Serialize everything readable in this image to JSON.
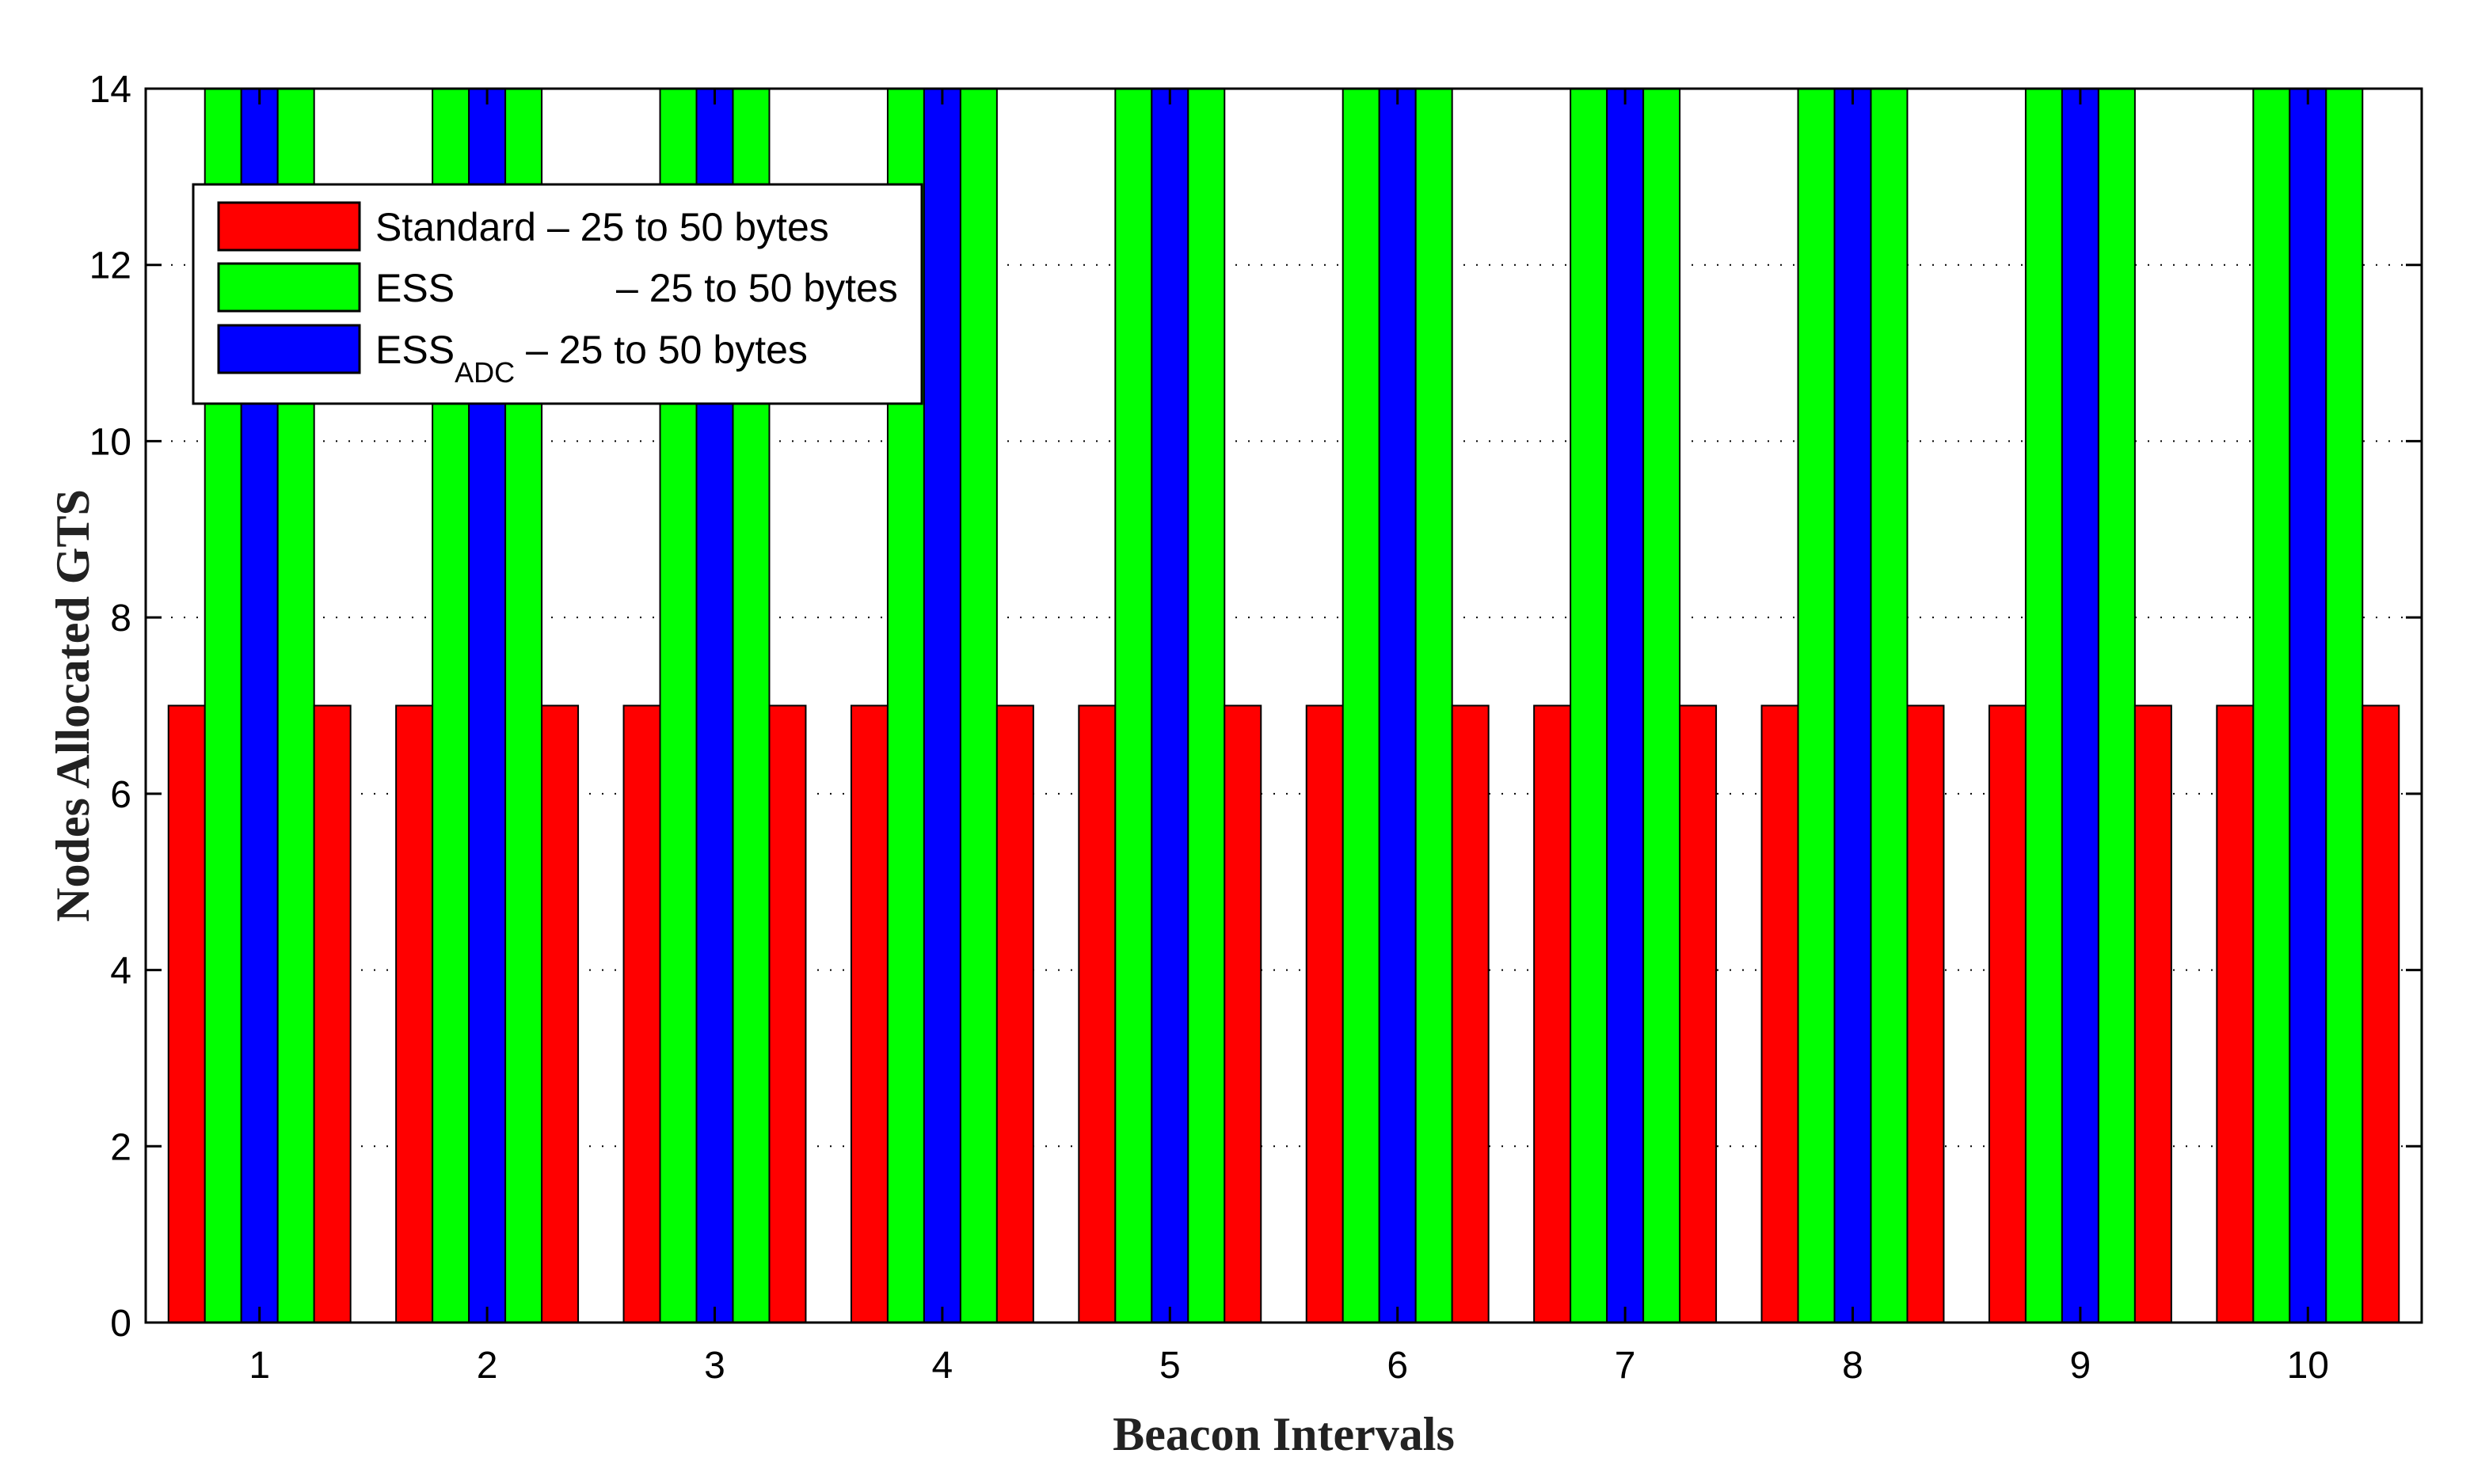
{
  "chart_data": {
    "type": "bar",
    "xlabel": "Beacon Intervals",
    "ylabel": "Nodes Allocated GTS",
    "ylim": [
      0,
      14
    ],
    "yticks": [
      0,
      2,
      4,
      6,
      8,
      10,
      12,
      14
    ],
    "categories": [
      "1",
      "2",
      "3",
      "4",
      "5",
      "6",
      "7",
      "8",
      "9",
      "10"
    ],
    "grid": "horizontal dotted",
    "legend_position": "top-left",
    "series": [
      {
        "name": "Standard – 25 to 50 bytes",
        "legend_main": "Standard",
        "legend_sub": "",
        "legend_suffix": "– 25 to 50 bytes",
        "color": "#ff0000",
        "values": [
          7,
          7,
          7,
          7,
          7,
          7,
          7,
          7,
          7,
          7
        ]
      },
      {
        "name": "ESS – 25 to 50 bytes",
        "legend_main": "ESS",
        "legend_sub": "",
        "legend_suffix": "– 25 to 50 bytes",
        "color": "#00ff00",
        "values": [
          14,
          14,
          14,
          14,
          14,
          14,
          14,
          14,
          14,
          14
        ]
      },
      {
        "name": "ESSADC – 25 to 50 bytes",
        "legend_main": "ESS",
        "legend_sub": "ADC",
        "legend_suffix": "– 25 to 50 bytes",
        "color": "#0000ff",
        "values": [
          14,
          14,
          14,
          14,
          14,
          14,
          14,
          14,
          14,
          14
        ]
      }
    ],
    "bar_pattern": [
      "Standard",
      "ESS",
      "ESSADC",
      "ESS",
      "Standard"
    ]
  }
}
